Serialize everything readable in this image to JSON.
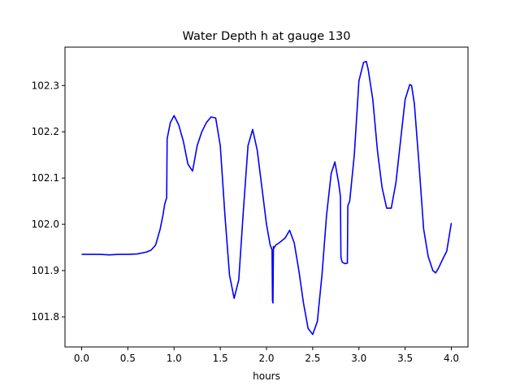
{
  "chart_data": {
    "type": "line",
    "title": "Water Depth h at gauge 130",
    "xlabel": "hours",
    "ylabel": "",
    "xlim": [
      -0.18,
      4.18
    ],
    "ylim": [
      101.735,
      102.383
    ],
    "xticks": [
      0.0,
      0.5,
      1.0,
      1.5,
      2.0,
      2.5,
      3.0,
      3.5,
      4.0
    ],
    "xtick_labels": [
      "0.0",
      "0.5",
      "1.0",
      "1.5",
      "2.0",
      "2.5",
      "3.0",
      "3.5",
      "4.0"
    ],
    "yticks": [
      101.8,
      101.9,
      102.0,
      102.1,
      102.2,
      102.3
    ],
    "ytick_labels": [
      "101.8",
      "101.9",
      "102.0",
      "102.1",
      "102.2",
      "102.3"
    ],
    "grid": false,
    "line_color": "#0000ff",
    "series": [
      {
        "x": [
          0.0,
          0.1,
          0.2,
          0.3,
          0.4,
          0.5,
          0.6,
          0.7,
          0.75,
          0.8,
          0.85,
          0.88,
          0.9,
          0.92,
          0.925,
          0.93,
          0.96,
          1.0,
          1.05,
          1.1,
          1.15,
          1.2,
          1.25,
          1.3,
          1.35,
          1.4,
          1.45,
          1.5,
          1.55,
          1.6,
          1.65,
          1.7,
          1.75,
          1.8,
          1.85,
          1.9,
          1.95,
          2.0,
          2.04,
          2.06,
          2.065,
          2.07,
          2.075,
          2.08,
          2.085,
          2.1,
          2.15,
          2.2,
          2.25,
          2.3,
          2.35,
          2.4,
          2.45,
          2.5,
          2.55,
          2.6,
          2.65,
          2.7,
          2.74,
          2.78,
          2.8,
          2.805,
          2.81,
          2.82,
          2.85,
          2.875,
          2.88,
          2.9,
          2.95,
          3.0,
          3.05,
          3.08,
          3.1,
          3.15,
          3.2,
          3.25,
          3.3,
          3.35,
          3.4,
          3.45,
          3.5,
          3.55,
          3.57,
          3.6,
          3.65,
          3.7,
          3.75,
          3.8,
          3.83,
          3.86,
          3.9,
          3.95,
          4.0
        ],
        "y": [
          101.935,
          101.935,
          101.935,
          101.934,
          101.935,
          101.935,
          101.936,
          101.94,
          101.944,
          101.955,
          101.99,
          102.02,
          102.045,
          102.057,
          102.185,
          102.19,
          102.22,
          102.235,
          102.215,
          102.18,
          102.13,
          102.115,
          102.17,
          102.2,
          102.22,
          102.232,
          102.23,
          102.17,
          102.02,
          101.89,
          101.84,
          101.88,
          102.03,
          102.17,
          102.205,
          102.16,
          102.08,
          102.0,
          101.955,
          101.945,
          101.835,
          101.83,
          101.952,
          101.948,
          101.95,
          101.955,
          101.962,
          101.97,
          101.987,
          101.96,
          101.9,
          101.83,
          101.775,
          101.762,
          101.79,
          101.89,
          102.02,
          102.11,
          102.135,
          102.09,
          102.06,
          101.93,
          101.925,
          101.918,
          101.915,
          101.916,
          102.04,
          102.05,
          102.15,
          102.31,
          102.35,
          102.352,
          102.335,
          102.27,
          102.16,
          102.08,
          102.035,
          102.035,
          102.09,
          102.18,
          102.27,
          102.302,
          102.3,
          102.26,
          102.13,
          101.99,
          101.93,
          101.9,
          101.895,
          101.905,
          101.922,
          101.942,
          102.003
        ]
      }
    ]
  }
}
